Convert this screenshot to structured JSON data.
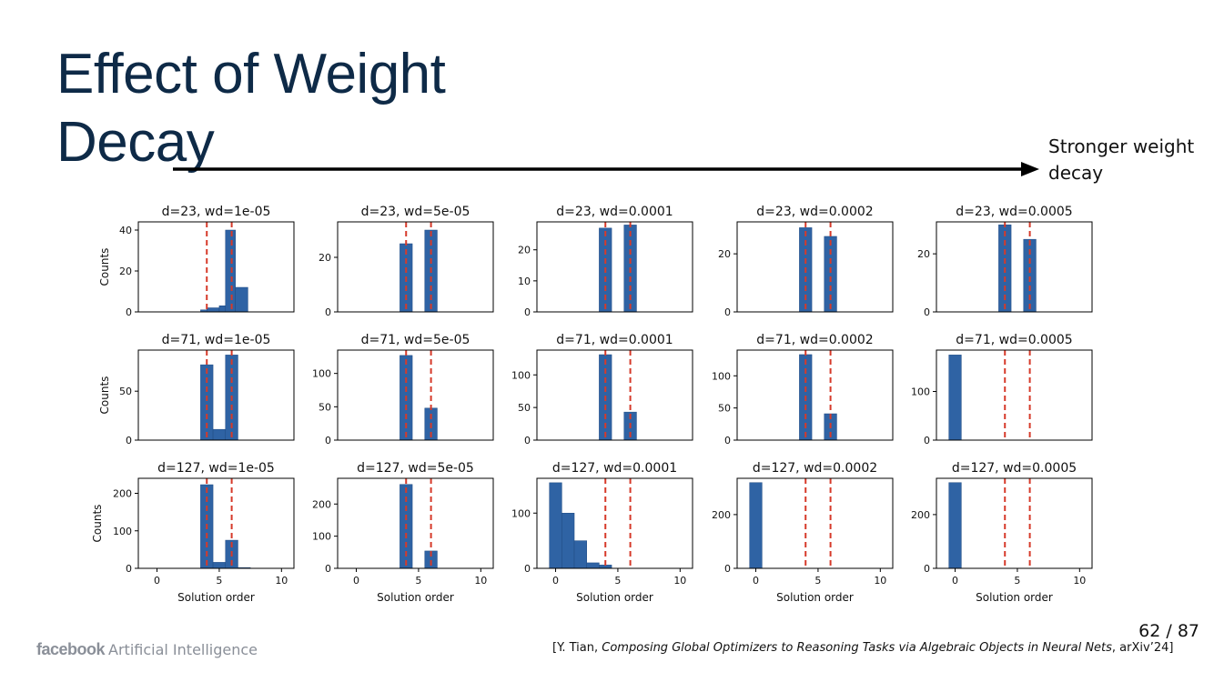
{
  "slide": {
    "title": "Effect of Weight Decay",
    "arrow_label": "Stronger weight decay",
    "page_number": "62 / 87",
    "citation_prefix": "[Y. Tian, ",
    "citation_title": "Composing Global Optimizers to Reasoning Tasks via Algebraic Objects in Neural Nets",
    "citation_suffix": ", arXiv’24]",
    "footer_brand": "facebook",
    "footer_unit": "Artificial Intelligence"
  },
  "chart_data": {
    "type": "bar",
    "ylabel": "Counts",
    "xlabel": "Solution order",
    "xlim": [
      -1.5,
      11
    ],
    "xticks": [
      0,
      5,
      10
    ],
    "bar_color": "#2f63a4",
    "reference_line_color": "#d63a2a",
    "reference_lines_x": [
      4,
      6
    ],
    "panels": [
      {
        "title": "d=23, wd=1e-05",
        "ylim": [
          0,
          44
        ],
        "yticks": [
          0,
          20,
          40
        ],
        "bars": [
          {
            "x": 3.5,
            "w": 0.5,
            "y": 1
          },
          {
            "x": 4,
            "w": 1,
            "y": 2
          },
          {
            "x": 5,
            "w": 1,
            "y": 3
          },
          {
            "x": 5.5,
            "w": 0.8,
            "y": 40
          },
          {
            "x": 6.3,
            "w": 1,
            "y": 12
          }
        ]
      },
      {
        "title": "d=23, wd=5e-05",
        "ylim": [
          0,
          33
        ],
        "yticks": [
          0,
          20
        ],
        "bars": [
          {
            "x": 3.5,
            "w": 1,
            "y": 25
          },
          {
            "x": 5.5,
            "w": 1,
            "y": 30
          }
        ]
      },
      {
        "title": "d=23, wd=0.0001",
        "ylim": [
          0,
          29
        ],
        "yticks": [
          0,
          10,
          20
        ],
        "bars": [
          {
            "x": 3.5,
            "w": 1,
            "y": 27
          },
          {
            "x": 5.5,
            "w": 1,
            "y": 28
          }
        ]
      },
      {
        "title": "d=23, wd=0.0002",
        "ylim": [
          0,
          31
        ],
        "yticks": [
          0,
          20
        ],
        "bars": [
          {
            "x": 3.5,
            "w": 1,
            "y": 29
          },
          {
            "x": 5.5,
            "w": 1,
            "y": 26
          }
        ]
      },
      {
        "title": "d=23, wd=0.0005",
        "ylim": [
          0,
          31
        ],
        "yticks": [
          0,
          20
        ],
        "bars": [
          {
            "x": 3.5,
            "w": 1,
            "y": 30
          },
          {
            "x": 5.5,
            "w": 1,
            "y": 25
          }
        ]
      },
      {
        "title": "d=71, wd=1e-05",
        "ylim": [
          0,
          92
        ],
        "yticks": [
          0,
          50
        ],
        "bars": [
          {
            "x": 3.5,
            "w": 1,
            "y": 77
          },
          {
            "x": 4.5,
            "w": 1,
            "y": 11
          },
          {
            "x": 5.5,
            "w": 1,
            "y": 87
          }
        ]
      },
      {
        "title": "d=71, wd=5e-05",
        "ylim": [
          0,
          135
        ],
        "yticks": [
          0,
          50,
          100
        ],
        "bars": [
          {
            "x": 3.5,
            "w": 1,
            "y": 127
          },
          {
            "x": 5.5,
            "w": 1,
            "y": 48
          }
        ]
      },
      {
        "title": "d=71, wd=0.0001",
        "ylim": [
          0,
          138
        ],
        "yticks": [
          0,
          50,
          100
        ],
        "bars": [
          {
            "x": 3.5,
            "w": 1,
            "y": 131
          },
          {
            "x": 5.5,
            "w": 1,
            "y": 43
          }
        ]
      },
      {
        "title": "d=71, wd=0.0002",
        "ylim": [
          0,
          140
        ],
        "yticks": [
          0,
          50,
          100
        ],
        "bars": [
          {
            "x": 3.5,
            "w": 1,
            "y": 133
          },
          {
            "x": 5.5,
            "w": 1,
            "y": 41
          }
        ]
      },
      {
        "title": "d=71, wd=0.0005",
        "ylim": [
          0,
          185
        ],
        "yticks": [
          0,
          100
        ],
        "bars": [
          {
            "x": -0.5,
            "w": 1,
            "y": 175
          }
        ]
      },
      {
        "title": "d=127, wd=1e-05",
        "ylim": [
          0,
          240
        ],
        "yticks": [
          0,
          100,
          200
        ],
        "bars": [
          {
            "x": 3.5,
            "w": 1,
            "y": 223
          },
          {
            "x": 4.5,
            "w": 1,
            "y": 16
          },
          {
            "x": 5.5,
            "w": 1,
            "y": 75
          },
          {
            "x": 6.5,
            "w": 1,
            "y": 2
          }
        ]
      },
      {
        "title": "d=127, wd=5e-05",
        "ylim": [
          0,
          280
        ],
        "yticks": [
          0,
          100,
          200
        ],
        "bars": [
          {
            "x": 3.5,
            "w": 1,
            "y": 261
          },
          {
            "x": 5.5,
            "w": 1,
            "y": 54
          }
        ]
      },
      {
        "title": "d=127, wd=0.0001",
        "ylim": [
          0,
          163
        ],
        "yticks": [
          0,
          100
        ],
        "bars": [
          {
            "x": -0.5,
            "w": 1,
            "y": 155
          },
          {
            "x": 0.5,
            "w": 1,
            "y": 100
          },
          {
            "x": 1.5,
            "w": 1,
            "y": 50
          },
          {
            "x": 2.5,
            "w": 1,
            "y": 10
          },
          {
            "x": 3.5,
            "w": 1,
            "y": 6
          }
        ]
      },
      {
        "title": "d=127, wd=0.0002",
        "ylim": [
          0,
          335
        ],
        "yticks": [
          0,
          200
        ],
        "bars": [
          {
            "x": -0.5,
            "w": 1,
            "y": 319
          }
        ]
      },
      {
        "title": "d=127, wd=0.0005",
        "ylim": [
          0,
          335
        ],
        "yticks": [
          0,
          200
        ],
        "bars": [
          {
            "x": -0.5,
            "w": 1,
            "y": 319
          }
        ]
      }
    ]
  }
}
